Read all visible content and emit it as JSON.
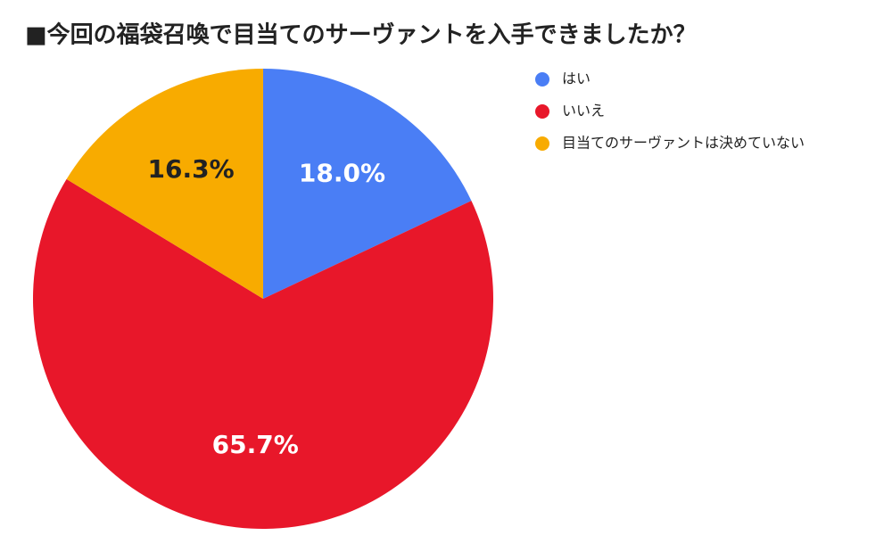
{
  "chart_data": {
    "type": "pie",
    "title": "■今回の福袋召喚で目当てのサーヴァントを入手できましたか？",
    "categories": [
      "はい",
      "いいえ",
      "目当てのサーヴァントは決めていない"
    ],
    "values": [
      18.0,
      65.7,
      16.3
    ],
    "value_labels": [
      "18.0%",
      "65.7%",
      "16.3%"
    ],
    "colors": [
      "#4a7ef5",
      "#e8172a",
      "#f8ab00"
    ],
    "label_colors": [
      "#ffffff",
      "#ffffff",
      "#222222"
    ]
  }
}
